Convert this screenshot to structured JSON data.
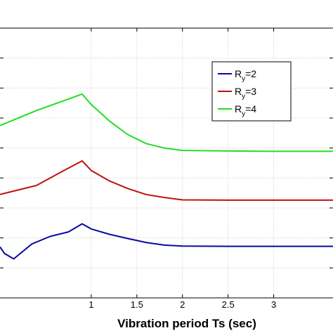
{
  "chart_data": {
    "type": "line",
    "xlabel": "Vibration period Ts (sec)",
    "ylabel": "",
    "title": "",
    "xlim": [
      0,
      3.65
    ],
    "ylim": [
      0,
      9
    ],
    "x_ticks": [
      "1",
      "1.5",
      "2",
      "2.5",
      "3"
    ],
    "grid": true,
    "legend_position": "upper-right",
    "series": [
      {
        "name": "Ry=2",
        "legend_base": "R",
        "legend_sub": "y",
        "legend_suffix": "=2",
        "color": "#0a0aa0",
        "x": [
          0.0,
          0.05,
          0.15,
          0.35,
          0.55,
          0.75,
          0.9,
          1.0,
          1.2,
          1.4,
          1.6,
          1.8,
          2.0,
          2.5,
          3.0,
          3.65
        ],
        "y": [
          1.7,
          1.48,
          1.3,
          1.8,
          2.05,
          2.2,
          2.47,
          2.3,
          2.12,
          1.98,
          1.85,
          1.76,
          1.73,
          1.72,
          1.72,
          1.72
        ]
      },
      {
        "name": "Ry=3",
        "legend_base": "R",
        "legend_sub": "y",
        "legend_suffix": "=3",
        "color": "#c01010",
        "x": [
          0.0,
          0.4,
          0.7,
          0.9,
          1.0,
          1.2,
          1.4,
          1.6,
          1.8,
          2.0,
          2.5,
          3.0,
          3.65
        ],
        "y": [
          3.45,
          3.75,
          4.25,
          4.57,
          4.25,
          3.9,
          3.65,
          3.45,
          3.35,
          3.27,
          3.26,
          3.26,
          3.26
        ]
      },
      {
        "name": "Ry=4",
        "legend_base": "R",
        "legend_sub": "y",
        "legend_suffix": "=4",
        "color": "#22dd22",
        "x": [
          0.0,
          0.4,
          0.7,
          0.9,
          1.0,
          1.2,
          1.4,
          1.6,
          1.8,
          2.0,
          2.5,
          3.0,
          3.65
        ],
        "y": [
          5.75,
          6.25,
          6.58,
          6.8,
          6.45,
          5.9,
          5.45,
          5.15,
          5.0,
          4.92,
          4.9,
          4.89,
          4.89
        ]
      }
    ]
  }
}
